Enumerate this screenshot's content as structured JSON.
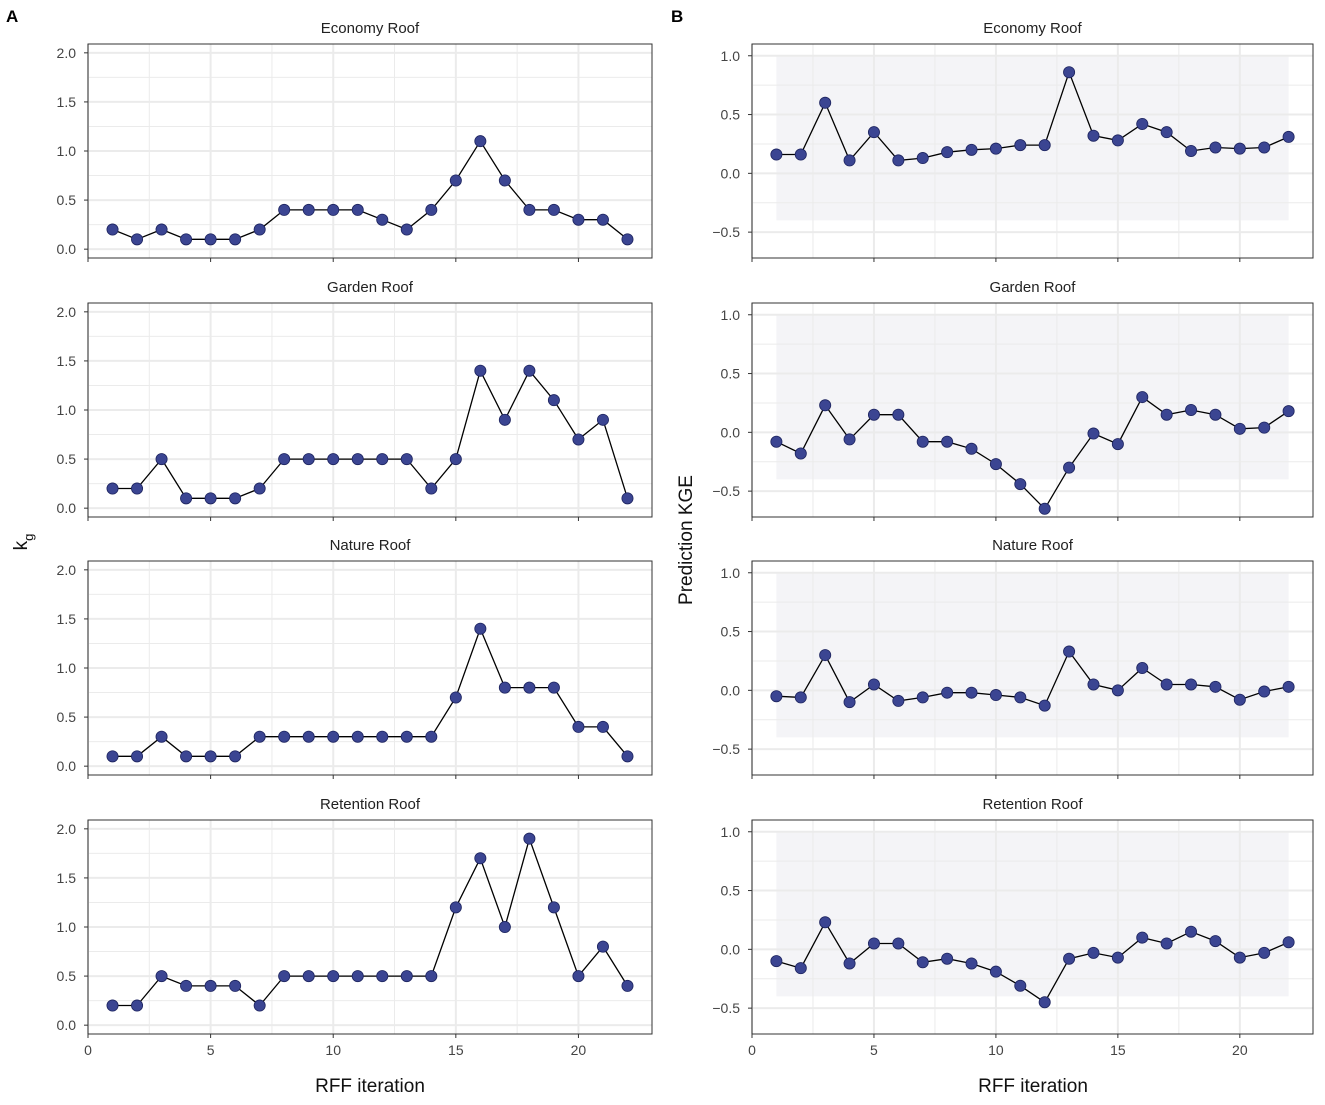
{
  "panel_labels": {
    "a": "A",
    "b": "B"
  },
  "axis": {
    "x_title_left": "RFF iteration",
    "x_title_right": "RFF iteration",
    "y_title_left_main": "k",
    "y_title_left_sub": "g",
    "y_title_right": "Prediction KGE"
  },
  "colors": {
    "point": "#3b4592",
    "line": "#000000",
    "band": "#f4f4f7",
    "grid": "#ebebeb"
  },
  "chart_data": [
    {
      "type": "line",
      "column": "A",
      "title": "Economy Roof",
      "x": [
        1,
        2,
        3,
        4,
        5,
        6,
        7,
        8,
        9,
        10,
        11,
        12,
        13,
        14,
        15,
        16,
        17,
        18,
        19,
        20,
        21,
        22
      ],
      "values": [
        0.2,
        0.1,
        0.2,
        0.1,
        0.1,
        0.1,
        0.2,
        0.4,
        0.4,
        0.4,
        0.4,
        0.3,
        0.2,
        0.4,
        0.7,
        1.1,
        0.7,
        0.4,
        0.4,
        0.3,
        0.3,
        0.1
      ],
      "xlim": [
        0,
        23
      ],
      "ylim": [
        -0.09,
        2.09
      ],
      "yticks": [
        "0.0",
        "0.5",
        "1.0",
        "1.5",
        "2.0"
      ],
      "xticks": [
        "0",
        "5",
        "10",
        "15",
        "20"
      ]
    },
    {
      "type": "line",
      "column": "A",
      "title": "Garden Roof",
      "x": [
        1,
        2,
        3,
        4,
        5,
        6,
        7,
        8,
        9,
        10,
        11,
        12,
        13,
        14,
        15,
        16,
        17,
        18,
        19,
        20,
        21,
        22
      ],
      "values": [
        0.2,
        0.2,
        0.5,
        0.1,
        0.1,
        0.1,
        0.2,
        0.5,
        0.5,
        0.5,
        0.5,
        0.5,
        0.5,
        0.2,
        0.5,
        1.4,
        0.9,
        1.4,
        1.1,
        0.7,
        0.9,
        0.1
      ],
      "xlim": [
        0,
        23
      ],
      "ylim": [
        -0.09,
        2.09
      ],
      "yticks": [
        "0.0",
        "0.5",
        "1.0",
        "1.5",
        "2.0"
      ],
      "xticks": [
        "0",
        "5",
        "10",
        "15",
        "20"
      ]
    },
    {
      "type": "line",
      "column": "A",
      "title": "Nature Roof",
      "x": [
        1,
        2,
        3,
        4,
        5,
        6,
        7,
        8,
        9,
        10,
        11,
        12,
        13,
        14,
        15,
        16,
        17,
        18,
        19,
        20,
        21,
        22
      ],
      "values": [
        0.1,
        0.1,
        0.3,
        0.1,
        0.1,
        0.1,
        0.3,
        0.3,
        0.3,
        0.3,
        0.3,
        0.3,
        0.3,
        0.3,
        0.7,
        1.4,
        0.8,
        0.8,
        0.8,
        0.4,
        0.4,
        0.1
      ],
      "xlim": [
        0,
        23
      ],
      "ylim": [
        -0.09,
        2.09
      ],
      "yticks": [
        "0.0",
        "0.5",
        "1.0",
        "1.5",
        "2.0"
      ],
      "xticks": [
        "0",
        "5",
        "10",
        "15",
        "20"
      ]
    },
    {
      "type": "line",
      "column": "A",
      "title": "Retention Roof",
      "x": [
        1,
        2,
        3,
        4,
        5,
        6,
        7,
        8,
        9,
        10,
        11,
        12,
        13,
        14,
        15,
        16,
        17,
        18,
        19,
        20,
        21,
        22
      ],
      "values": [
        0.2,
        0.2,
        0.5,
        0.4,
        0.4,
        0.4,
        0.2,
        0.5,
        0.5,
        0.5,
        0.5,
        0.5,
        0.5,
        0.5,
        1.2,
        1.7,
        1.0,
        1.9,
        1.2,
        0.5,
        0.8,
        0.4
      ],
      "xlim": [
        0,
        23
      ],
      "ylim": [
        -0.09,
        2.09
      ],
      "yticks": [
        "0.0",
        "0.5",
        "1.0",
        "1.5",
        "2.0"
      ],
      "xticks": [
        "0",
        "5",
        "10",
        "15",
        "20"
      ]
    },
    {
      "type": "line",
      "column": "B",
      "title": "Economy Roof",
      "x": [
        1,
        2,
        3,
        4,
        5,
        6,
        7,
        8,
        9,
        10,
        11,
        12,
        13,
        14,
        15,
        16,
        17,
        18,
        19,
        20,
        21,
        22
      ],
      "values": [
        0.16,
        0.16,
        0.6,
        0.11,
        0.35,
        0.11,
        0.13,
        0.18,
        0.2,
        0.21,
        0.24,
        0.24,
        0.86,
        0.32,
        0.28,
        0.42,
        0.35,
        0.19,
        0.22,
        0.21,
        0.22,
        0.31
      ],
      "band": [
        -0.4,
        1.0
      ],
      "band_x": [
        1,
        22
      ],
      "xlim": [
        0,
        23
      ],
      "ylim": [
        -0.72,
        1.1
      ],
      "yticks": [
        "−0.5",
        "0.0",
        "0.5",
        "1.0"
      ],
      "xticks": [
        "0",
        "5",
        "10",
        "15",
        "20"
      ]
    },
    {
      "type": "line",
      "column": "B",
      "title": "Garden Roof",
      "x": [
        1,
        2,
        3,
        4,
        5,
        6,
        7,
        8,
        9,
        10,
        11,
        12,
        13,
        14,
        15,
        16,
        17,
        18,
        19,
        20,
        21,
        22
      ],
      "values": [
        -0.08,
        -0.18,
        0.23,
        -0.06,
        0.15,
        0.15,
        -0.08,
        -0.08,
        -0.14,
        -0.27,
        -0.44,
        -0.65,
        -0.3,
        -0.01,
        -0.1,
        0.3,
        0.15,
        0.19,
        0.15,
        0.03,
        0.04,
        0.18
      ],
      "band": [
        -0.4,
        1.0
      ],
      "band_x": [
        1,
        22
      ],
      "xlim": [
        0,
        23
      ],
      "ylim": [
        -0.72,
        1.1
      ],
      "yticks": [
        "−0.5",
        "0.0",
        "0.5",
        "1.0"
      ],
      "xticks": [
        "0",
        "5",
        "10",
        "15",
        "20"
      ]
    },
    {
      "type": "line",
      "column": "B",
      "title": "Nature Roof",
      "x": [
        1,
        2,
        3,
        4,
        5,
        6,
        7,
        8,
        9,
        10,
        11,
        12,
        13,
        14,
        15,
        16,
        17,
        18,
        19,
        20,
        21,
        22
      ],
      "values": [
        -0.05,
        -0.06,
        0.3,
        -0.1,
        0.05,
        -0.09,
        -0.06,
        -0.02,
        -0.02,
        -0.04,
        -0.06,
        -0.13,
        0.33,
        0.05,
        0.0,
        0.19,
        0.05,
        0.05,
        0.03,
        -0.08,
        -0.01,
        0.03
      ],
      "band": [
        -0.4,
        1.0
      ],
      "band_x": [
        1,
        22
      ],
      "xlim": [
        0,
        23
      ],
      "ylim": [
        -0.72,
        1.1
      ],
      "yticks": [
        "−0.5",
        "0.0",
        "0.5",
        "1.0"
      ],
      "xticks": [
        "0",
        "5",
        "10",
        "15",
        "20"
      ]
    },
    {
      "type": "line",
      "column": "B",
      "title": "Retention Roof",
      "x": [
        1,
        2,
        3,
        4,
        5,
        6,
        7,
        8,
        9,
        10,
        11,
        12,
        13,
        14,
        15,
        16,
        17,
        18,
        19,
        20,
        21,
        22
      ],
      "values": [
        -0.1,
        -0.16,
        0.23,
        -0.12,
        0.05,
        0.05,
        -0.11,
        -0.08,
        -0.12,
        -0.19,
        -0.31,
        -0.45,
        -0.08,
        -0.03,
        -0.07,
        0.1,
        0.05,
        0.15,
        0.07,
        -0.07,
        -0.03,
        0.06
      ],
      "band": [
        -0.4,
        1.0
      ],
      "band_x": [
        1,
        22
      ],
      "xlim": [
        0,
        23
      ],
      "ylim": [
        -0.72,
        1.1
      ],
      "yticks": [
        "−0.5",
        "0.0",
        "0.5",
        "1.0"
      ],
      "xticks": [
        "0",
        "5",
        "10",
        "15",
        "20"
      ]
    }
  ]
}
